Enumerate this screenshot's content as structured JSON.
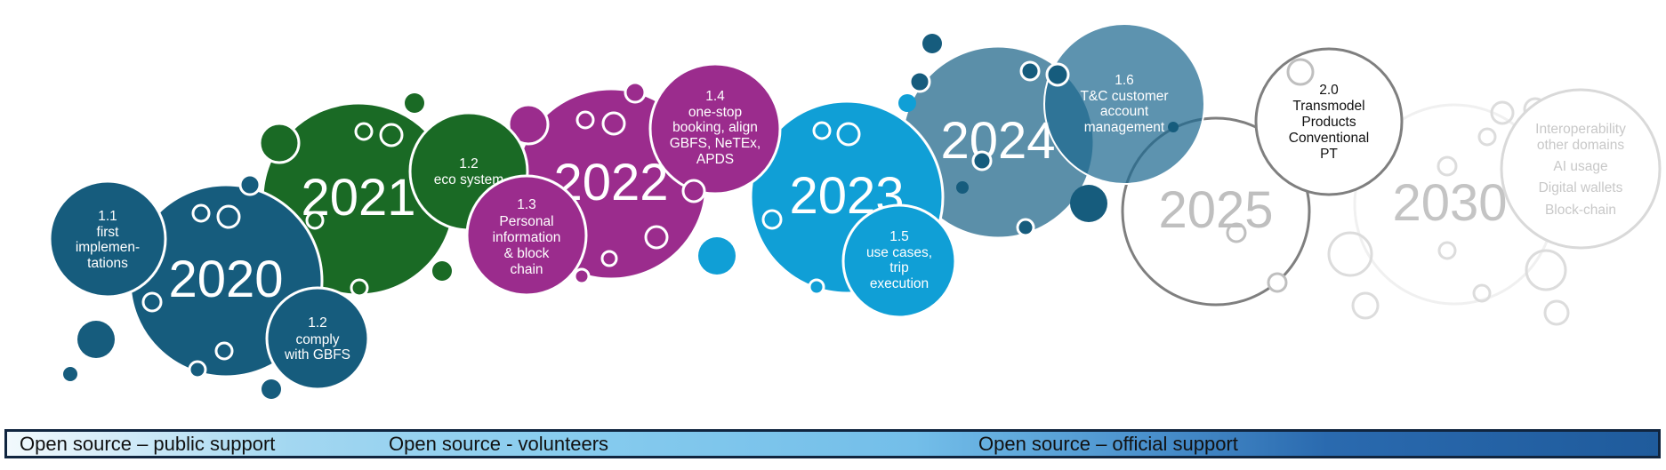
{
  "years": [
    {
      "id": "y2020",
      "label": "2020",
      "color": "#165c7d"
    },
    {
      "id": "y2021",
      "label": "2021",
      "color": "#1a6a25"
    },
    {
      "id": "y2022",
      "label": "2022",
      "color": "#9b2c8d"
    },
    {
      "id": "y2023",
      "label": "2023",
      "color": "#109fd6"
    },
    {
      "id": "y2024",
      "label": "2024",
      "color": "#5b8fa9"
    },
    {
      "id": "y2025",
      "label": "2025",
      "color": "#bfbfbf"
    },
    {
      "id": "y2030",
      "label": "2030",
      "color": "#c4c4c4"
    }
  ],
  "milestones": [
    {
      "id": "m11",
      "lines": [
        "1.1",
        "first",
        "implemen-",
        "tations"
      ]
    },
    {
      "id": "m12a",
      "lines": [
        "1.2",
        "comply",
        "with GBFS"
      ]
    },
    {
      "id": "m12b",
      "lines": [
        "1.2",
        "eco system"
      ]
    },
    {
      "id": "m13",
      "lines": [
        "1.3",
        "Personal",
        "information",
        "& block",
        "chain"
      ]
    },
    {
      "id": "m14",
      "lines": [
        "1.4",
        "one-stop",
        "booking, align",
        "GBFS, NeTEx,",
        "APDS"
      ]
    },
    {
      "id": "m15",
      "lines": [
        "1.5",
        "use cases,",
        "trip",
        "execution"
      ]
    },
    {
      "id": "m16",
      "lines": [
        "1.6",
        "T&C customer",
        "account",
        "management"
      ]
    },
    {
      "id": "m20",
      "lines": [
        "2.0",
        "Transmodel",
        "Products",
        "Conventional",
        "PT"
      ]
    },
    {
      "id": "m30",
      "lines": [
        "Interoperability",
        "other domains",
        "AI usage",
        "Digital wallets",
        "Block-chain"
      ]
    }
  ],
  "support_band": {
    "segments": [
      "Open source – public support",
      "Open source - volunteers",
      "Open source – official support"
    ]
  }
}
